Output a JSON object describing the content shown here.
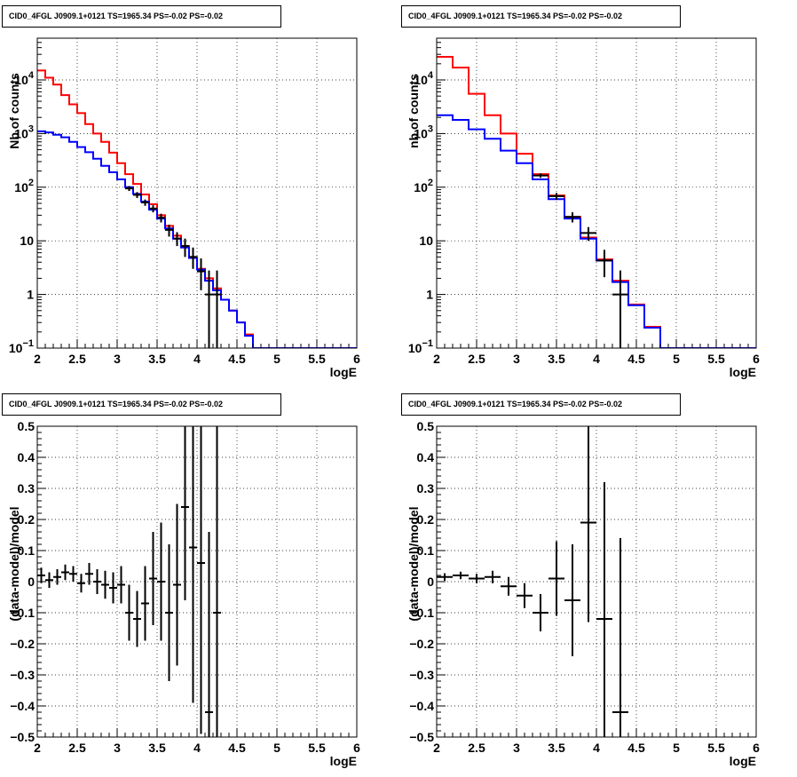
{
  "chart_data": [
    {
      "type": "histogram",
      "title": "CID0_4FGL J0909.1+0121 TS=1965.34 PS=-0.02 PS=-0.02",
      "xlabel": "logE",
      "ylabel": "Nb of counts",
      "xlim": [
        2,
        6
      ],
      "ylim": [
        0.1,
        60000
      ],
      "yscale": "log",
      "grid": true,
      "x_ticks": [
        "2",
        "2.5",
        "3",
        "3.5",
        "4",
        "4.5",
        "5",
        "5.5",
        "6"
      ],
      "y_ticks": [
        {
          "value": 0.1,
          "base": "10",
          "exp": "−1"
        },
        {
          "value": 1,
          "label": "1"
        },
        {
          "value": 10,
          "label": "10"
        },
        {
          "value": 100,
          "base": "10",
          "exp": "2"
        },
        {
          "value": 1000,
          "base": "10",
          "exp": "3"
        },
        {
          "value": 10000,
          "base": "10",
          "exp": "4"
        }
      ],
      "bin_edges": [
        2,
        2.1,
        2.2,
        2.3,
        2.4,
        2.5,
        2.6,
        2.7,
        2.8,
        2.9,
        3,
        3.1,
        3.2,
        3.3,
        3.4,
        3.5,
        3.6,
        3.7,
        3.8,
        3.9,
        4,
        4.1,
        4.2,
        4.3,
        4.4,
        4.5,
        4.6,
        4.7,
        4.8,
        4.9,
        5,
        5.1,
        5.2,
        5.3,
        5.4,
        5.5,
        5.6,
        5.7,
        5.8,
        5.9,
        6
      ],
      "series": [
        {
          "kind": "histogram",
          "color": "#ff0000",
          "values": [
            15000,
            11000,
            8200,
            5200,
            3500,
            2400,
            1500,
            1000,
            700,
            440,
            280,
            175,
            115,
            73,
            48,
            30,
            19,
            12.5,
            8,
            5,
            3,
            2,
            1.3,
            0.8,
            0.5,
            0.3,
            0.18,
            0.1,
            0.1,
            0.1,
            0.1,
            0.1,
            0.1,
            0.1,
            0.1,
            0.1,
            0.1,
            0.1,
            0.1,
            0.1
          ]
        },
        {
          "kind": "histogram",
          "color": "#0000ff",
          "values": [
            1100,
            1050,
            950,
            850,
            700,
            560,
            450,
            340,
            250,
            190,
            140,
            100,
            75,
            54,
            38,
            26,
            17,
            11,
            7.5,
            4.8,
            2.9,
            1.8,
            1.2,
            0.8,
            0.5,
            0.3,
            0.17,
            0.1,
            0.1,
            0.1,
            0.1,
            0.1,
            0.1,
            0.1,
            0.1,
            0.1,
            0.1,
            0.1,
            0.1,
            0.1
          ]
        },
        {
          "kind": "points",
          "color": "#000000",
          "x": [
            3.15,
            3.25,
            3.35,
            3.45,
            3.55,
            3.65,
            3.75,
            3.85,
            3.95,
            4.05,
            4.15,
            4.25
          ],
          "y": [
            95,
            72,
            52,
            40,
            27,
            16,
            11,
            8,
            5,
            2.7,
            1,
            1
          ],
          "yerr_lo": [
            10,
            9,
            7,
            6,
            5,
            4,
            3,
            3,
            2,
            1.5,
            0.9,
            0.9
          ],
          "yerr_hi": [
            10,
            9,
            7,
            6,
            5,
            4,
            3.5,
            3,
            2.5,
            2,
            1.8,
            1.8
          ]
        }
      ]
    },
    {
      "type": "histogram",
      "title": "CID0_4FGL J0909.1+0121 TS=1965.34 PS=-0.02 PS=-0.02",
      "xlabel": "logE",
      "ylabel": "nb of counts",
      "xlim": [
        2,
        6
      ],
      "ylim": [
        0.1,
        60000
      ],
      "yscale": "log",
      "grid": true,
      "x_ticks": [
        "2",
        "2.5",
        "3",
        "3.5",
        "4",
        "4.5",
        "5",
        "5.5",
        "6"
      ],
      "y_ticks": [
        {
          "value": 0.1,
          "base": "10",
          "exp": "−1"
        },
        {
          "value": 1,
          "label": "1"
        },
        {
          "value": 10,
          "label": "10"
        },
        {
          "value": 100,
          "base": "10",
          "exp": "2"
        },
        {
          "value": 1000,
          "base": "10",
          "exp": "3"
        },
        {
          "value": 10000,
          "base": "10",
          "exp": "4"
        }
      ],
      "bin_edges": [
        2,
        2.2,
        2.4,
        2.6,
        2.8,
        3,
        3.2,
        3.4,
        3.6,
        3.8,
        4,
        4.2,
        4.4,
        4.6,
        4.8,
        5,
        5.2,
        5.4,
        5.6,
        5.8,
        6
      ],
      "series": [
        {
          "kind": "histogram",
          "color": "#ff0000",
          "values": [
            27000,
            17000,
            5500,
            2200,
            1000,
            420,
            175,
            70,
            28,
            11.5,
            4.5,
            1.8,
            0.65,
            0.25,
            0.1,
            0.1,
            0.1,
            0.1,
            0.1,
            0.1
          ]
        },
        {
          "kind": "histogram",
          "color": "#0000ff",
          "values": [
            2200,
            1800,
            1200,
            800,
            480,
            280,
            140,
            60,
            26,
            11,
            4.3,
            1.7,
            0.63,
            0.24,
            0.1,
            0.1,
            0.1,
            0.1,
            0.1,
            0.1
          ]
        },
        {
          "kind": "points",
          "color": "#000000",
          "x": [
            3.3,
            3.5,
            3.7,
            3.9,
            4.1,
            4.3
          ],
          "y": [
            165,
            68,
            28,
            14,
            4.3,
            1
          ],
          "yerr_lo": [
            15,
            10,
            6,
            4,
            2.2,
            0.9
          ],
          "yerr_hi": [
            15,
            10,
            6,
            4,
            2.5,
            1.8
          ]
        }
      ]
    },
    {
      "type": "scatter",
      "title": "CID0_4FGL J0909.1+0121 TS=1965.34 PS=-0.02 PS=-0.02",
      "xlabel": "logE",
      "ylabel": "(data-model)/model",
      "xlim": [
        2,
        6
      ],
      "ylim": [
        -0.5,
        0.5
      ],
      "grid": true,
      "x_ticks": [
        "2",
        "2.5",
        "3",
        "3.5",
        "4",
        "4.5",
        "5",
        "5.5",
        "6"
      ],
      "y_ticks": [
        "−0.5",
        "−0.4",
        "−0.3",
        "−0.2",
        "−0.1",
        "0",
        "0.1",
        "0.2",
        "0.3",
        "0.4",
        "0.5"
      ],
      "series": [
        {
          "kind": "points",
          "color": "#000000",
          "bin_width": 0.1,
          "x": [
            2.05,
            2.15,
            2.25,
            2.35,
            2.45,
            2.55,
            2.65,
            2.75,
            2.85,
            2.95,
            3.05,
            3.15,
            3.25,
            3.35,
            3.45,
            3.55,
            3.65,
            3.75,
            3.85,
            3.95,
            4.05,
            4.15,
            4.25
          ],
          "y": [
            0.02,
            0.005,
            0.015,
            0.03,
            0.025,
            -0.005,
            0.025,
            0.0,
            -0.01,
            -0.02,
            -0.01,
            -0.1,
            -0.12,
            -0.07,
            0.01,
            0.0,
            -0.1,
            -0.01,
            0.24,
            0.11,
            0.06,
            -0.42,
            -0.1
          ],
          "yerr": [
            0.025,
            0.025,
            0.025,
            0.025,
            0.025,
            0.03,
            0.035,
            0.04,
            0.045,
            0.05,
            0.06,
            0.09,
            0.09,
            0.12,
            0.15,
            0.19,
            0.22,
            0.26,
            0.3,
            0.5,
            0.55,
            0.58,
            0.6
          ]
        }
      ]
    },
    {
      "type": "scatter",
      "title": "CID0_4FGL J0909.1+0121 TS=1965.34 PS=-0.02 PS=-0.02",
      "xlabel": "logE",
      "ylabel": "(data-model)/model",
      "xlim": [
        2,
        6
      ],
      "ylim": [
        -0.5,
        0.5
      ],
      "grid": true,
      "x_ticks": [
        "2",
        "2.5",
        "3",
        "3.5",
        "4",
        "4.5",
        "5",
        "5.5",
        "6"
      ],
      "y_ticks": [
        "−0.5",
        "−0.4",
        "−0.3",
        "−0.2",
        "−0.1",
        "0",
        "0.1",
        "0.2",
        "0.3",
        "0.4",
        "0.5"
      ],
      "series": [
        {
          "kind": "points",
          "color": "#000000",
          "bin_width": 0.2,
          "x": [
            2.1,
            2.3,
            2.5,
            2.7,
            2.9,
            3.1,
            3.3,
            3.5,
            3.7,
            3.9,
            4.1,
            4.3
          ],
          "y": [
            0.015,
            0.02,
            0.01,
            0.015,
            -0.015,
            -0.045,
            -0.1,
            0.01,
            -0.06,
            0.19,
            -0.12,
            -0.42
          ],
          "yerr": [
            0.012,
            0.012,
            0.015,
            0.02,
            0.03,
            0.04,
            0.06,
            0.12,
            0.18,
            0.32,
            0.44,
            0.56
          ]
        }
      ]
    }
  ]
}
